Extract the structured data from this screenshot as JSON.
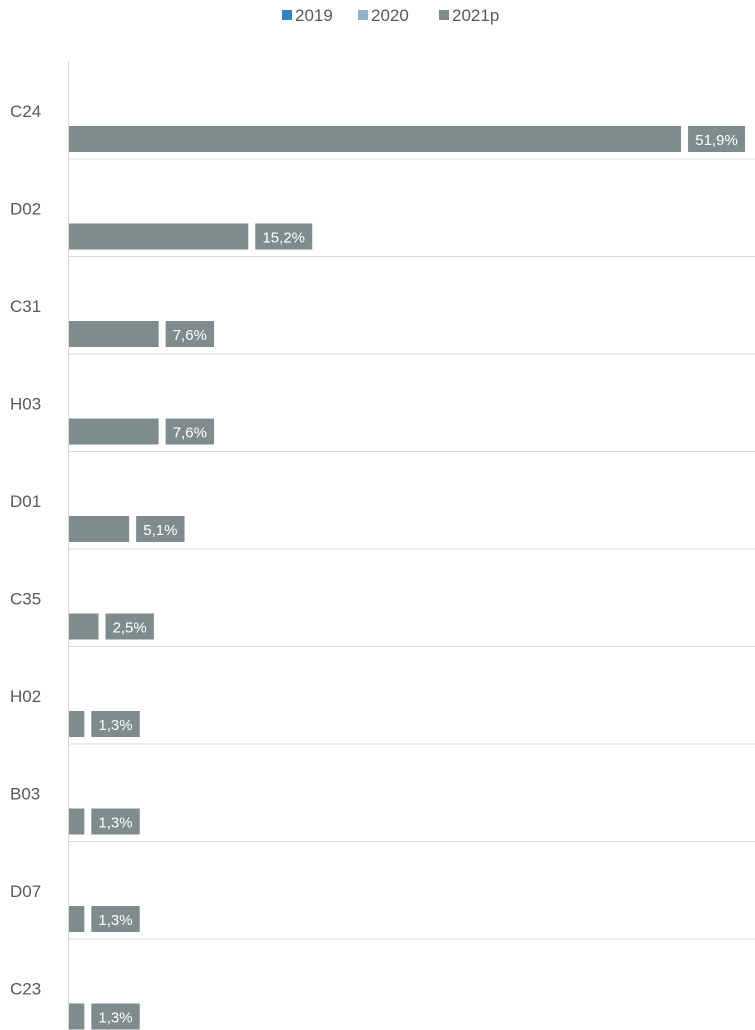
{
  "chart_data": {
    "type": "bar",
    "orientation": "horizontal",
    "legend_position": "top",
    "grid": false,
    "categories": [
      "C24",
      "D02",
      "C31",
      "H03",
      "D01",
      "C35",
      "H02",
      "B03",
      "D07",
      "C23"
    ],
    "series": [
      {
        "name": "2019",
        "color": "#2e86c1",
        "values": [
          null,
          null,
          null,
          null,
          null,
          null,
          null,
          null,
          null,
          null
        ]
      },
      {
        "name": "2020",
        "color": "#8fb3c4",
        "values": [
          null,
          null,
          null,
          null,
          null,
          null,
          null,
          null,
          null,
          null
        ]
      },
      {
        "name": "2021p",
        "color": "#7f8c8d",
        "values": [
          51.9,
          15.2,
          7.6,
          7.6,
          5.1,
          2.5,
          1.3,
          1.3,
          1.3,
          1.3
        ],
        "labels": [
          "51,9%",
          "15,2%",
          "7,6%",
          "7,6%",
          "5,1%",
          "2,5%",
          "1,3%",
          "1,3%",
          "1,3%",
          "1,3%"
        ]
      }
    ],
    "xlim": [
      0,
      56.9
    ]
  }
}
